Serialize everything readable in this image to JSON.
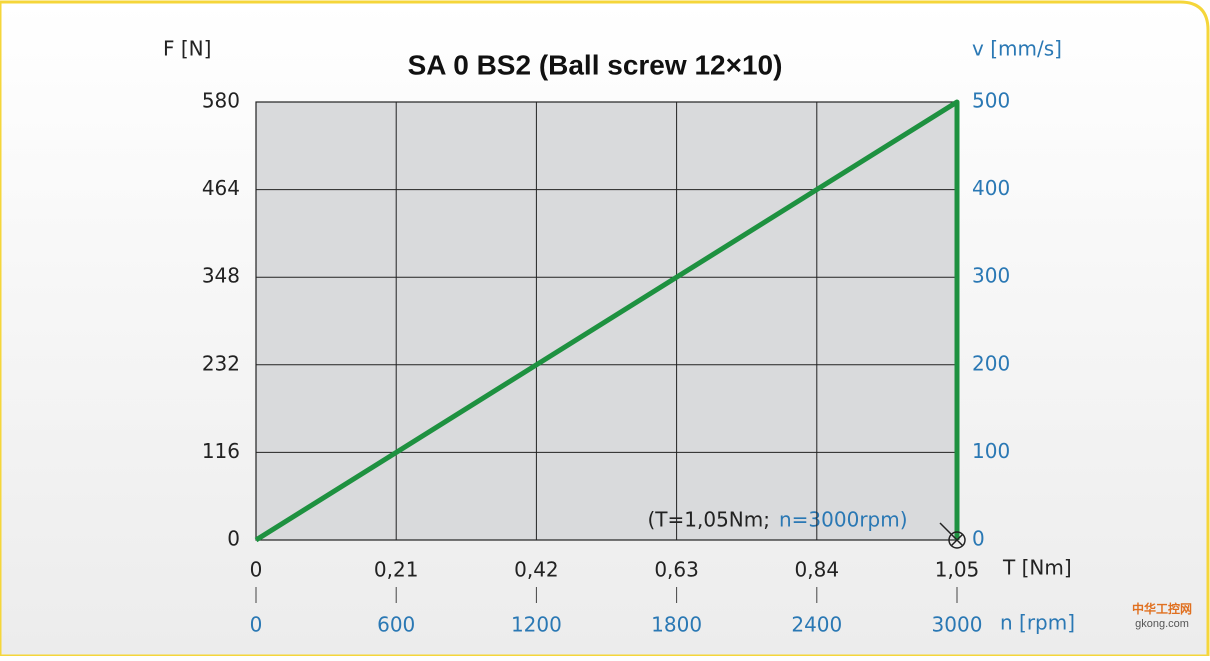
{
  "chart_data": {
    "type": "line",
    "title": "SA 0   BS2 (Ball screw 12×10)",
    "ylabel": "F [N]",
    "y2label": "v [mm/s]",
    "xlabel": "T [Nm]",
    "x2label": "n [rpm]",
    "x": [
      0,
      1.05,
      1.05
    ],
    "series": [
      {
        "color": "#1e9140",
        "values": [
          0,
          580,
          0
        ]
      }
    ],
    "xlim": [
      0,
      1.05
    ],
    "xticks": [
      0,
      {
        "value": 0.21,
        "label": "0,21"
      },
      {
        "value": 0.42,
        "label": "0,42"
      },
      {
        "value": 0.63,
        "label": "0,63"
      },
      {
        "value": 0.84,
        "label": "0,84"
      },
      {
        "value": 1.05,
        "label": "1,05"
      }
    ],
    "x2lim": [
      0,
      3000
    ],
    "x2ticks": [
      0,
      600,
      1200,
      1800,
      2400,
      3000
    ],
    "ylim": [
      0,
      580
    ],
    "yticks": [
      0,
      116,
      232,
      348,
      464,
      580
    ],
    "y2lim": [
      0,
      500
    ],
    "y2ticks": [
      0,
      100,
      200,
      300,
      400,
      500
    ],
    "grid": true,
    "annotations": [
      "(T=1,05Nm;",
      "n=3000rpm)"
    ]
  },
  "watermark": {
    "name": "中华工控网",
    "url": "gkong.com"
  }
}
